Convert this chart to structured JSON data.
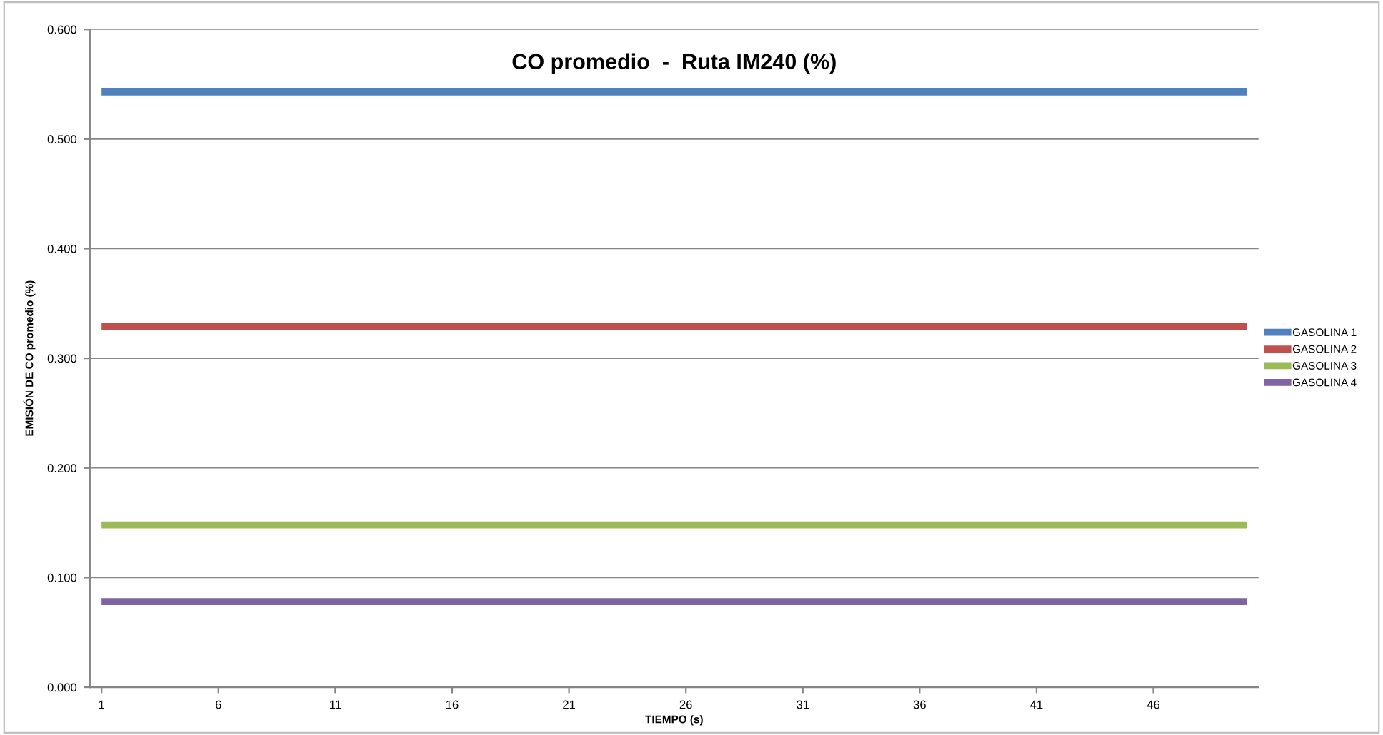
{
  "chart_data": {
    "type": "line",
    "title": "CO promedio  -  Ruta IM240 (%)",
    "xlabel": "TIEMPO (s)",
    "ylabel": "EMISIÓN DE CO promedio (%)",
    "categories": [
      "1",
      null,
      null,
      null,
      null,
      "6",
      null,
      null,
      null,
      null,
      "11",
      null,
      null,
      null,
      null,
      "16",
      null,
      null,
      null,
      null,
      "21",
      null,
      null,
      null,
      null,
      "26",
      null,
      null,
      null,
      null,
      "31",
      null,
      null,
      null,
      null,
      "36",
      null,
      null,
      null,
      null,
      "41",
      null,
      null,
      null,
      null,
      "46",
      null,
      null,
      null,
      null
    ],
    "ylim": [
      0,
      0.6
    ],
    "yticks": [
      {
        "value": 0,
        "label": "0.000"
      },
      {
        "value": 0.1,
        "label": "0.100"
      },
      {
        "value": 0.2,
        "label": "0.200"
      },
      {
        "value": 0.3,
        "label": "0.300"
      },
      {
        "value": 0.4,
        "label": "0.400"
      },
      {
        "value": 0.5,
        "label": "0.500"
      },
      {
        "value": 0.6,
        "label": "0.600"
      }
    ],
    "grid": "y",
    "legend": "right",
    "marker": "none",
    "line_style": "solid",
    "series": [
      {
        "name": "GASOLINA 1",
        "color": "#4f81bd",
        "values": [
          0.543,
          0.543,
          0.543,
          0.543,
          0.543,
          0.543,
          0.543,
          0.543,
          0.543,
          0.543,
          0.543,
          0.543,
          0.543,
          0.543,
          0.543,
          0.543,
          0.543,
          0.543,
          0.543,
          0.543,
          0.543,
          0.543,
          0.543,
          0.543,
          0.543,
          0.543,
          0.543,
          0.543,
          0.543,
          0.543,
          0.543,
          0.543,
          0.543,
          0.543,
          0.543,
          0.543,
          0.543,
          0.543,
          0.543,
          0.543,
          0.543,
          0.543,
          0.543,
          0.543,
          0.543,
          0.543,
          0.543,
          0.543,
          0.543,
          0.543
        ]
      },
      {
        "name": "GASOLINA 2",
        "color": "#c0504d",
        "values": [
          0.329,
          0.329,
          0.329,
          0.329,
          0.329,
          0.329,
          0.329,
          0.329,
          0.329,
          0.329,
          0.329,
          0.329,
          0.329,
          0.329,
          0.329,
          0.329,
          0.329,
          0.329,
          0.329,
          0.329,
          0.329,
          0.329,
          0.329,
          0.329,
          0.329,
          0.329,
          0.329,
          0.329,
          0.329,
          0.329,
          0.329,
          0.329,
          0.329,
          0.329,
          0.329,
          0.329,
          0.329,
          0.329,
          0.329,
          0.329,
          0.329,
          0.329,
          0.329,
          0.329,
          0.329,
          0.329,
          0.329,
          0.329,
          0.329,
          0.329
        ]
      },
      {
        "name": "GASOLINA 3",
        "color": "#9bbb59",
        "values": [
          0.148,
          0.148,
          0.148,
          0.148,
          0.148,
          0.148,
          0.148,
          0.148,
          0.148,
          0.148,
          0.148,
          0.148,
          0.148,
          0.148,
          0.148,
          0.148,
          0.148,
          0.148,
          0.148,
          0.148,
          0.148,
          0.148,
          0.148,
          0.148,
          0.148,
          0.148,
          0.148,
          0.148,
          0.148,
          0.148,
          0.148,
          0.148,
          0.148,
          0.148,
          0.148,
          0.148,
          0.148,
          0.148,
          0.148,
          0.148,
          0.148,
          0.148,
          0.148,
          0.148,
          0.148,
          0.148,
          0.148,
          0.148,
          0.148,
          0.148
        ]
      },
      {
        "name": "GASOLINA 4",
        "color": "#8064a2",
        "values": [
          0.078,
          0.078,
          0.078,
          0.078,
          0.078,
          0.078,
          0.078,
          0.078,
          0.078,
          0.078,
          0.078,
          0.078,
          0.078,
          0.078,
          0.078,
          0.078,
          0.078,
          0.078,
          0.078,
          0.078,
          0.078,
          0.078,
          0.078,
          0.078,
          0.078,
          0.078,
          0.078,
          0.078,
          0.078,
          0.078,
          0.078,
          0.078,
          0.078,
          0.078,
          0.078,
          0.078,
          0.078,
          0.078,
          0.078,
          0.078,
          0.078,
          0.078,
          0.078,
          0.078,
          0.078,
          0.078,
          0.078,
          0.078,
          0.078,
          0.078
        ]
      }
    ]
  }
}
